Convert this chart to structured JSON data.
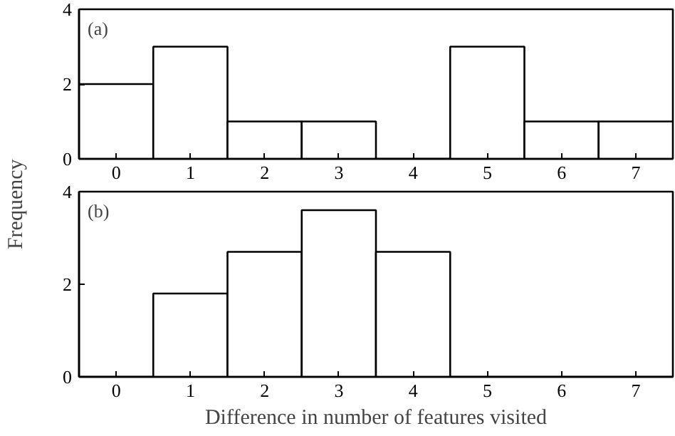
{
  "chart_data": [
    {
      "type": "histogram",
      "bins": [
        -0.5,
        0.5,
        1.5,
        2.5,
        3.5,
        4.5,
        5.5,
        6.5,
        7.5
      ],
      "values": [
        2,
        3,
        1,
        1,
        0,
        3,
        1,
        1
      ],
      "color": "#ffffff",
      "xlim": [
        -0.5,
        7.5
      ],
      "xticks": [
        0,
        1,
        2,
        3,
        4,
        5,
        6,
        7
      ],
      "ylim": [
        0,
        4
      ],
      "yticks": [
        0,
        2,
        4
      ],
      "ylabel": "Frequency",
      "annotations": [
        "(a)"
      ],
      "grid": false
    },
    {
      "type": "histogram",
      "bins": [
        -0.5,
        0.5,
        1.5,
        2.5,
        3.5,
        4.5,
        5.5,
        6.5,
        7.5
      ],
      "values": [
        0,
        1.8,
        2.7,
        3.6,
        2.7,
        0,
        0,
        0
      ],
      "color": "#ffffff",
      "xlim": [
        -0.5,
        7.5
      ],
      "xticks": [
        0,
        1,
        2,
        3,
        4,
        5,
        6,
        7
      ],
      "ylim": [
        0,
        4
      ],
      "yticks": [
        0,
        2,
        4
      ],
      "xlabel": "Difference in number of features visited",
      "annotations": [
        "(b)"
      ],
      "grid": false
    }
  ]
}
